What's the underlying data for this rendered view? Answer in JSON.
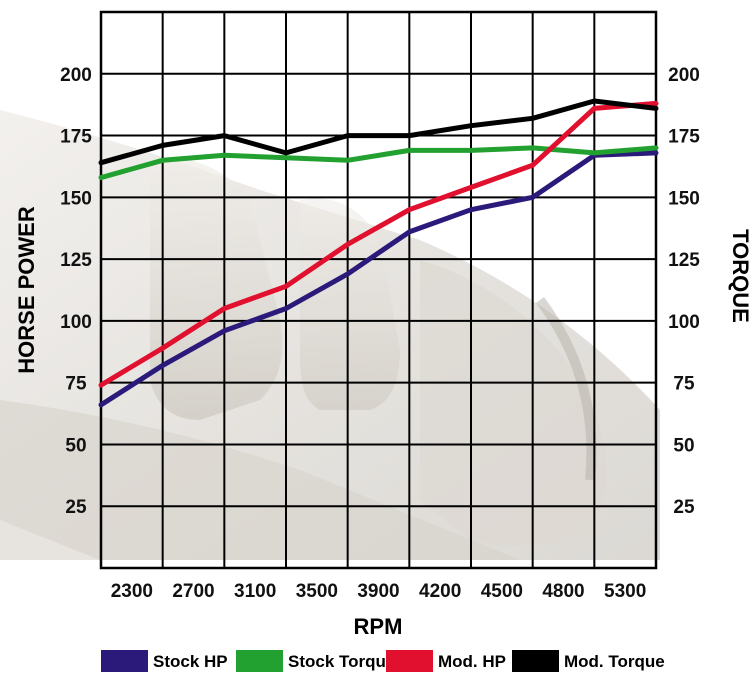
{
  "chart_data": {
    "type": "line",
    "xlabel": "RPM",
    "ylabel_left": "HORSE POWER",
    "ylabel_right": "TORQUE",
    "x_ticks": [
      "2300",
      "2700",
      "3100",
      "3500",
      "3900",
      "4200",
      "4500",
      "4800",
      "5300"
    ],
    "y_ticks": [
      25,
      50,
      75,
      100,
      125,
      150,
      175,
      200
    ],
    "ylim": [
      0,
      225
    ],
    "grid": true,
    "legend_position": "bottom",
    "series": [
      {
        "name": "Stock HP",
        "color": "#2c1a7a",
        "values": [
          66,
          82,
          96,
          105,
          119,
          136,
          145,
          150,
          167,
          168
        ]
      },
      {
        "name": "Stock Torque",
        "color": "#22a030",
        "values": [
          158,
          165,
          167,
          166,
          165,
          169,
          169,
          170,
          168,
          170
        ]
      },
      {
        "name": "Mod. HP",
        "color": "#e0102e",
        "values": [
          74,
          89,
          105,
          114,
          131,
          145,
          154,
          163,
          186,
          188
        ]
      },
      {
        "name": "Mod. Torque",
        "color": "#000000",
        "values": [
          164,
          171,
          175,
          168,
          175,
          175,
          179,
          182,
          189,
          186
        ]
      }
    ]
  }
}
